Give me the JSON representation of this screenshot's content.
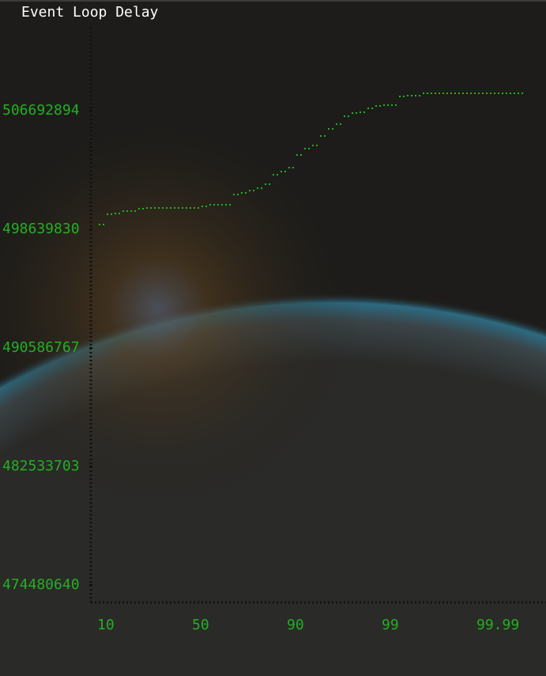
{
  "chart_data": {
    "type": "line",
    "title": "Event Loop Delay",
    "categories": [
      "10",
      null,
      null,
      null,
      null,
      null,
      null,
      null,
      null,
      null,
      null,
      null,
      "50",
      null,
      null,
      null,
      null,
      null,
      null,
      null,
      null,
      null,
      null,
      null,
      "90",
      null,
      null,
      null,
      null,
      null,
      null,
      null,
      null,
      null,
      null,
      null,
      "99",
      null,
      null,
      null,
      null,
      null,
      null,
      null,
      null,
      null,
      null,
      null,
      "99.99",
      null,
      null,
      null,
      null,
      null
    ],
    "series": [
      {
        "name": "Event Loop Delay",
        "color": "#22b022",
        "values": [
          498961912,
          499659843,
          499713530,
          499874591,
          499874591,
          500035652,
          500089339,
          500089339,
          500089339,
          500089339,
          500089339,
          500089339,
          500089339,
          500196713,
          500304087,
          500304087,
          500304087,
          501002018,
          501109392,
          501270453,
          501431514,
          501699949,
          502344193,
          502558941,
          502827376,
          503686368,
          504115864,
          504330612,
          504974856,
          505458039,
          505780161,
          506317031,
          506531779,
          506585466,
          506853901,
          507014962,
          507068649,
          507068649,
          507659206,
          507712893,
          507712893,
          507873954,
          507873954,
          507873954,
          507873954,
          507873954,
          507873954,
          507873954,
          507873954,
          507873954,
          507873954,
          507873954,
          507873954,
          507873954
        ]
      }
    ],
    "ylim": [
      474480640,
      506692894
    ],
    "yticks": [
      474480640,
      482533703,
      490586767,
      498639830,
      506692894
    ]
  }
}
